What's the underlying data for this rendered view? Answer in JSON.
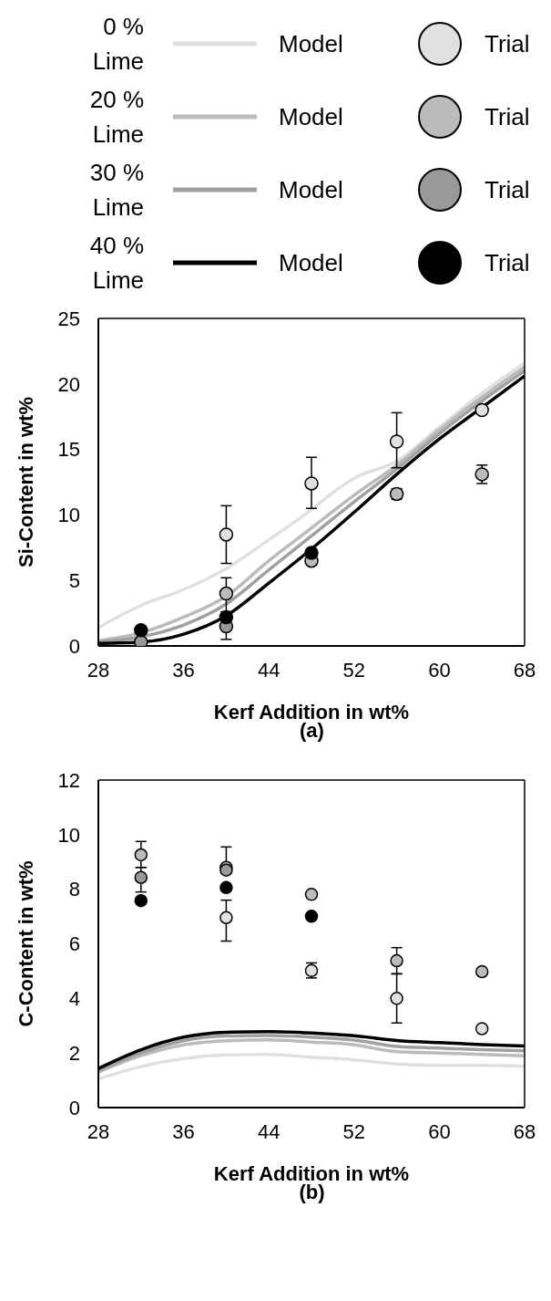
{
  "chart_data": [
    {
      "type": "scatter",
      "title": "(a)",
      "xlabel": "Kerf Addition in wt%",
      "ylabel": "Si-Content in wt%",
      "xlim": [
        28,
        68
      ],
      "xticks": [
        28,
        36,
        44,
        52,
        60,
        68
      ],
      "ylim": [
        0,
        25
      ],
      "yticks": [
        0,
        5,
        10,
        15,
        20,
        25
      ],
      "legend": "top",
      "annotations": [
        "0 % Lime",
        "20 % Lime",
        "30 % Lime",
        "40 % Lime"
      ],
      "x": [
        32,
        40,
        48,
        56,
        64
      ],
      "series": [
        {
          "name": "Model",
          "type": "line",
          "color": "#e0e0e0",
          "x": [
            28,
            32,
            36,
            40,
            44,
            48,
            50,
            52,
            56,
            60,
            64,
            68
          ],
          "values": [
            1.4,
            3.1,
            4.3,
            5.9,
            8.1,
            10.4,
            11.7,
            12.8,
            14.1,
            16.7,
            19.3,
            21.6
          ]
        },
        {
          "name": "Model",
          "type": "line",
          "color": "#bbbbbb",
          "x": [
            28,
            32,
            36,
            40,
            44,
            48,
            52,
            56,
            60,
            64,
            68
          ],
          "values": [
            0.4,
            1.0,
            2.2,
            3.8,
            6.5,
            9.0,
            11.5,
            13.8,
            16.5,
            19.0,
            21.3
          ]
        },
        {
          "name": "Model",
          "type": "line",
          "color": "#a0a0a0",
          "x": [
            28,
            32,
            36,
            40,
            44,
            48,
            52,
            56,
            60,
            64,
            68
          ],
          "values": [
            0.3,
            0.7,
            1.6,
            3.2,
            5.8,
            8.4,
            11.0,
            13.5,
            16.2,
            18.7,
            21.0
          ]
        },
        {
          "name": "Model",
          "type": "line",
          "color": "#000000",
          "x": [
            28,
            32,
            36,
            40,
            44,
            48,
            52,
            56,
            60,
            64,
            68
          ],
          "values": [
            0.2,
            0.3,
            0.9,
            2.3,
            4.8,
            7.4,
            10.2,
            13.1,
            15.8,
            18.2,
            20.6
          ]
        },
        {
          "name": "Trial",
          "type": "scatter",
          "color": "#e0e0e0",
          "values": [
            null,
            8.5,
            12.4,
            15.6,
            18.0
          ],
          "errors": [
            null,
            [
              6.3,
              10.7
            ],
            [
              10.5,
              14.4
            ],
            [
              13.6,
              17.8
            ],
            null
          ]
        },
        {
          "name": "Trial",
          "type": "scatter",
          "color": "#bbbbbb",
          "values": [
            null,
            4.0,
            6.5,
            11.6,
            13.1
          ],
          "errors": [
            null,
            [
              2.6,
              5.2
            ],
            null,
            [
              11.2,
              12.0
            ],
            [
              12.4,
              13.8
            ]
          ]
        },
        {
          "name": "Trial",
          "type": "scatter",
          "color": "#999999",
          "values": [
            0.3,
            1.5,
            null,
            null,
            null
          ],
          "errors": [
            null,
            [
              0.5,
              2.6
            ],
            null,
            null,
            null
          ]
        },
        {
          "name": "Trial",
          "type": "scatter",
          "color": "#000000",
          "values": [
            1.2,
            2.2,
            7.1,
            null,
            null
          ]
        }
      ]
    },
    {
      "type": "scatter",
      "title": "(b)",
      "xlabel": "Kerf Addition in wt%",
      "ylabel": "C-Content in wt%",
      "xlim": [
        28,
        68
      ],
      "xticks": [
        28,
        36,
        44,
        52,
        60,
        68
      ],
      "ylim": [
        0,
        12
      ],
      "yticks": [
        0,
        2,
        4,
        6,
        8,
        10,
        12
      ],
      "legend": false,
      "x": [
        32,
        40,
        48,
        56,
        64
      ],
      "series": [
        {
          "type": "line",
          "color": "#e0e0e0",
          "x": [
            28,
            32,
            36,
            40,
            44,
            48,
            52,
            56,
            60,
            64,
            68
          ],
          "values": [
            1.05,
            1.5,
            1.8,
            1.93,
            1.95,
            1.85,
            1.75,
            1.6,
            1.55,
            1.55,
            1.52
          ]
        },
        {
          "type": "line",
          "color": "#bbbbbb",
          "x": [
            28,
            32,
            36,
            40,
            44,
            48,
            52,
            56,
            60,
            64,
            68
          ],
          "values": [
            1.3,
            1.9,
            2.3,
            2.45,
            2.48,
            2.4,
            2.3,
            2.05,
            2.0,
            1.95,
            1.9
          ]
        },
        {
          "type": "line",
          "color": "#a0a0a0",
          "x": [
            28,
            32,
            36,
            40,
            44,
            48,
            52,
            56,
            60,
            64,
            68
          ],
          "values": [
            1.35,
            2.0,
            2.45,
            2.62,
            2.64,
            2.58,
            2.47,
            2.24,
            2.18,
            2.12,
            2.08
          ]
        },
        {
          "type": "line",
          "color": "#000000",
          "x": [
            28,
            32,
            36,
            40,
            44,
            48,
            52,
            56,
            60,
            64,
            68
          ],
          "values": [
            1.43,
            2.12,
            2.58,
            2.76,
            2.78,
            2.73,
            2.63,
            2.46,
            2.38,
            2.31,
            2.26
          ]
        },
        {
          "type": "scatter",
          "color": "#e0e0e0",
          "values": [
            null,
            6.96,
            5.02,
            4.0,
            2.89
          ],
          "errors": [
            null,
            [
              6.1,
              7.6
            ],
            [
              4.75,
              5.3
            ],
            [
              3.1,
              4.9
            ],
            null
          ]
        },
        {
          "type": "scatter",
          "color": "#bbbbbb",
          "values": [
            9.26,
            8.8,
            7.81,
            5.38,
            4.98
          ],
          "errors": [
            [
              8.8,
              9.75
            ],
            [
              8.8,
              9.55
            ],
            null,
            [
              4.9,
              5.86
            ],
            null
          ]
        },
        {
          "type": "scatter",
          "color": "#999999",
          "values": [
            8.43,
            8.7,
            null,
            null,
            null
          ],
          "errors": [
            [
              7.9,
              8.8
            ],
            null,
            null,
            null,
            null
          ]
        },
        {
          "type": "scatter",
          "color": "#000000",
          "values": [
            7.58,
            8.06,
            7.01,
            null,
            null
          ]
        }
      ]
    }
  ]
}
